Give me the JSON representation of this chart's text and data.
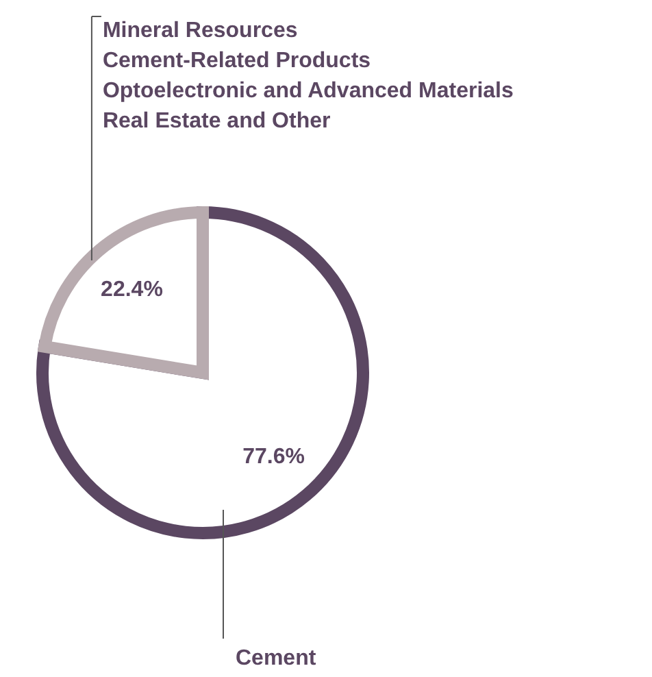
{
  "chart_data": {
    "type": "pie",
    "categories": [
      "Cement",
      "Mineral Resources\nCement-Related Products\nOptoelectronic and Advanced Materials\nReal Estate and Other"
    ],
    "values": [
      77.6,
      22.4
    ],
    "value_labels": [
      "77.6%",
      "22.4%"
    ],
    "colors": [
      "#5b4762",
      "#b8abaf"
    ]
  }
}
